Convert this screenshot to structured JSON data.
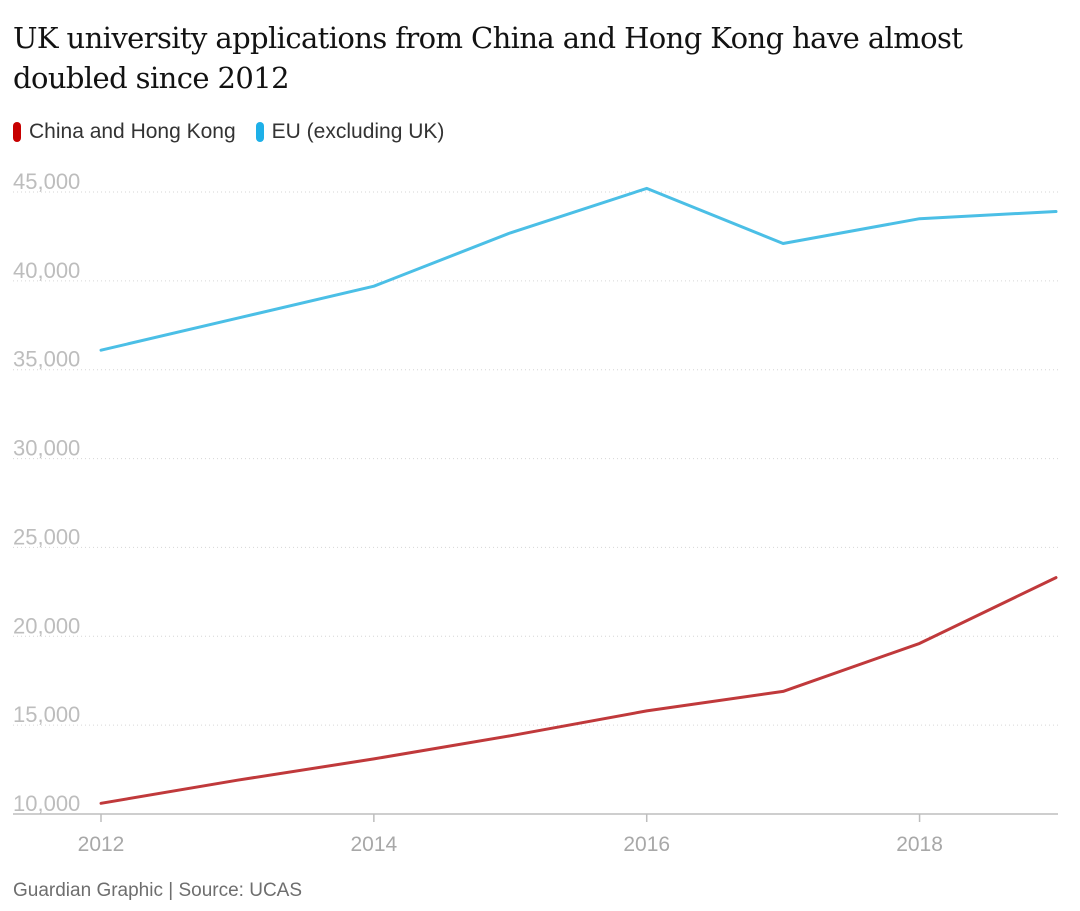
{
  "header": {
    "title": "UK university applications from China and Hong Kong have almost doubled since 2012"
  },
  "legend": {
    "items": [
      {
        "label": "China and Hong Kong",
        "color": "#c70000"
      },
      {
        "label": "EU (excluding UK)",
        "color": "#1eb0e8"
      }
    ]
  },
  "footer": {
    "source": "Guardian Graphic | Source: UCAS"
  },
  "chart_data": {
    "type": "line",
    "title": "UK university applications from China and Hong Kong have almost doubled since 2012",
    "xlabel": "",
    "ylabel": "",
    "x": [
      2012,
      2013,
      2014,
      2015,
      2016,
      2017,
      2018,
      2019
    ],
    "xlim": [
      2012,
      2019
    ],
    "ylim": [
      10000,
      45000
    ],
    "x_ticks": [
      2012,
      2014,
      2016,
      2018
    ],
    "x_tick_labels": [
      "2012",
      "2014",
      "2016",
      "2018"
    ],
    "y_ticks": [
      10000,
      15000,
      20000,
      25000,
      30000,
      35000,
      40000,
      45000
    ],
    "y_tick_labels": [
      "10,000",
      "15,000",
      "20,000",
      "25,000",
      "30,000",
      "35,000",
      "40,000",
      "45,000"
    ],
    "grid": "horizontal-dotted",
    "legend_position": "top-left",
    "series": [
      {
        "name": "China and Hong Kong",
        "color": "#c0393b",
        "values": [
          10600,
          11900,
          13100,
          14400,
          15800,
          16900,
          19600,
          23300
        ]
      },
      {
        "name": "EU (excluding UK)",
        "color": "#4bbfe6",
        "values": [
          36100,
          37900,
          39700,
          42700,
          45200,
          42100,
          43500,
          43900
        ]
      }
    ]
  }
}
